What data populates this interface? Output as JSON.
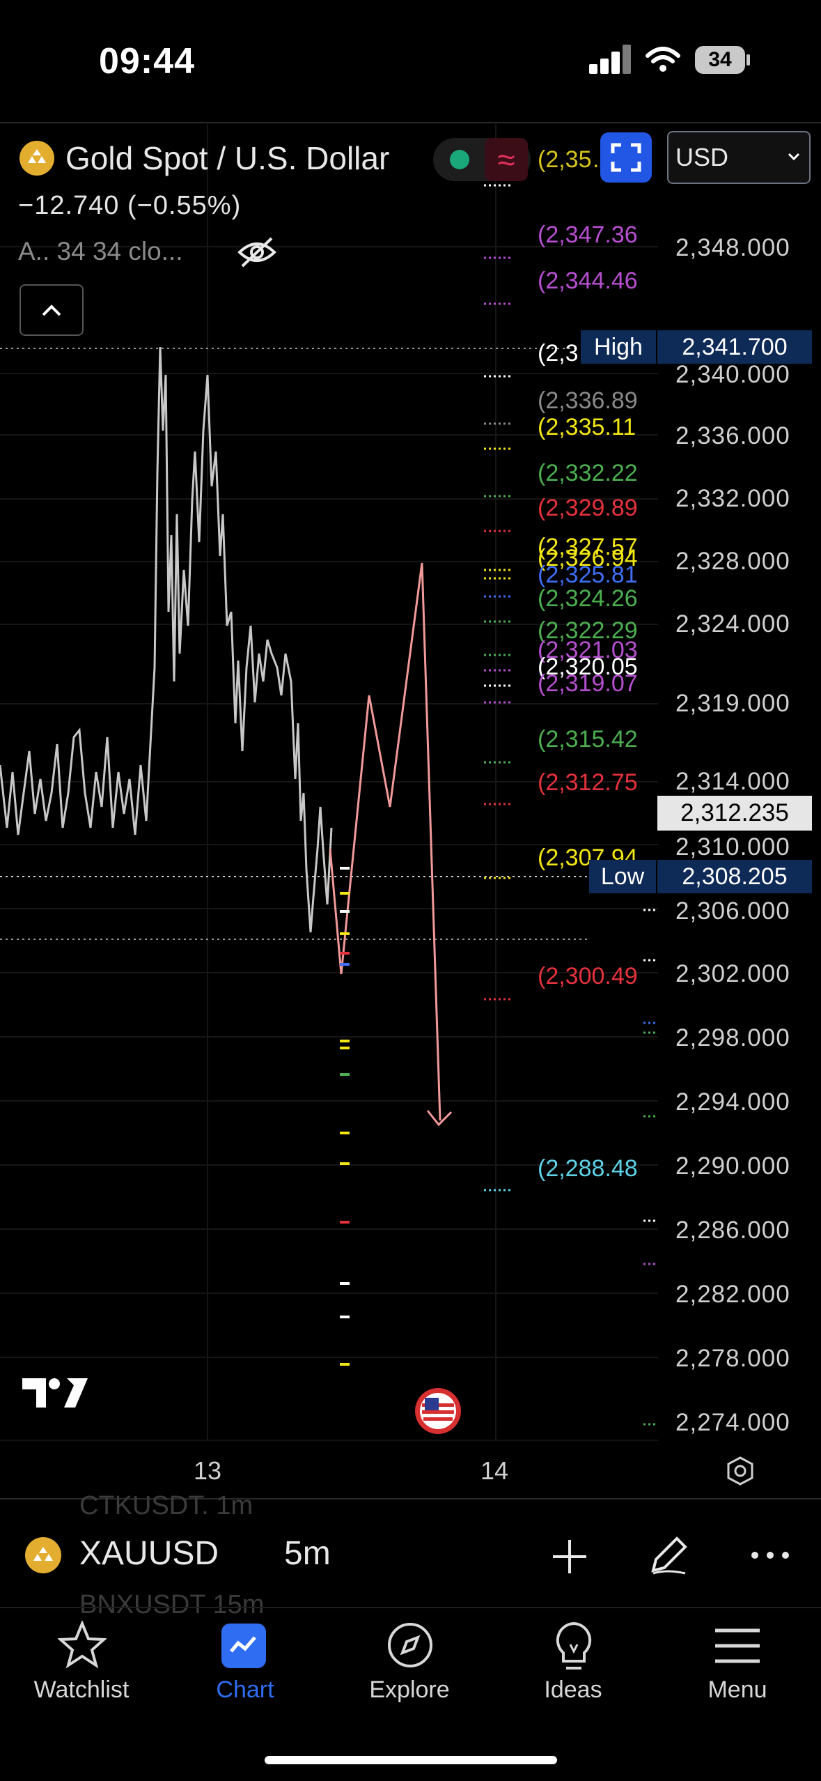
{
  "status_bar": {
    "time": "09:44",
    "battery": "34"
  },
  "header": {
    "symbol_title": "Gold Spot / U.S. Dollar",
    "price_change": "−12.740 (−0.55%)",
    "indicator_legend": "A.. 34 34 clo...",
    "status_wave": "≈",
    "currency": "USD",
    "currency_options": [
      "USD"
    ]
  },
  "price_axis": {
    "labels": [
      "2,348.000",
      "2,340.000",
      "2,336.000",
      "2,332.000",
      "2,328.000",
      "2,324.000",
      "2,319.000",
      "2,314.000",
      "2,310.000",
      "2,306.000",
      "2,302.000",
      "2,298.000",
      "2,294.000",
      "2,290.000",
      "2,286.000",
      "2,282.000",
      "2,278.000",
      "2,274.000"
    ],
    "high_label": "High",
    "high_value": "2,341.700",
    "low_label": "Low",
    "low_value": "2,308.205",
    "current_price": "2,312.235"
  },
  "levels": [
    {
      "text": "(2,35…",
      "color": "#d6c41c"
    },
    {
      "text": "(2,347.36",
      "color": "#b64fd0"
    },
    {
      "text": "(2,344.46",
      "color": "#b64fd0"
    },
    {
      "text": "(2,3",
      "color": "#ffffff"
    },
    {
      "text": "(2,336.89",
      "color": "#8a8a8a"
    },
    {
      "text": "(2,335.11",
      "color": "#f2e614"
    },
    {
      "text": "(2,332.22",
      "color": "#4caf50"
    },
    {
      "text": "(2,329.89",
      "color": "#e5323c"
    },
    {
      "text": "(2,327.57",
      "color": "#f2e614"
    },
    {
      "text": "(2,326.94",
      "color": "#f2e614"
    },
    {
      "text": "(2,325.81",
      "color": "#3f6ef5"
    },
    {
      "text": "(2,324.26",
      "color": "#4caf50"
    },
    {
      "text": "(2,322.29",
      "color": "#4caf50"
    },
    {
      "text": "(2,321.03",
      "color": "#b64fd0"
    },
    {
      "text": "(2,320.05",
      "color": "#ffffff"
    },
    {
      "text": "(2,319.07",
      "color": "#b64fd0"
    },
    {
      "text": "(2,315.42",
      "color": "#4caf50"
    },
    {
      "text": "(2,312.75",
      "color": "#e5323c"
    },
    {
      "text": "(2,307.94",
      "color": "#f2e614"
    },
    {
      "text": "(2,300.49",
      "color": "#e5323c"
    },
    {
      "text": "(2,288.48",
      "color": "#5fd3e8"
    }
  ],
  "x_axis": {
    "labels": [
      "13",
      "14"
    ]
  },
  "toolbar": {
    "symbol": "XAUUSD",
    "interval": "5m",
    "ghost_top": "CTKUSDT.   1m",
    "ghost_bottom": "BNXUSDT   15m"
  },
  "tabs": [
    {
      "label": "Watchlist",
      "icon": "star-icon",
      "active": false
    },
    {
      "label": "Chart",
      "icon": "chart-icon",
      "active": true
    },
    {
      "label": "Explore",
      "icon": "compass-icon",
      "active": false
    },
    {
      "label": "Ideas",
      "icon": "lightbulb-icon",
      "active": false
    },
    {
      "label": "Menu",
      "icon": "hamburger-icon",
      "active": false
    }
  ],
  "colors": {
    "accent": "#2f6df2",
    "up_tag": "#0e2a57",
    "projection": "#f29a9a",
    "price_line": "#c8c8c8"
  }
}
